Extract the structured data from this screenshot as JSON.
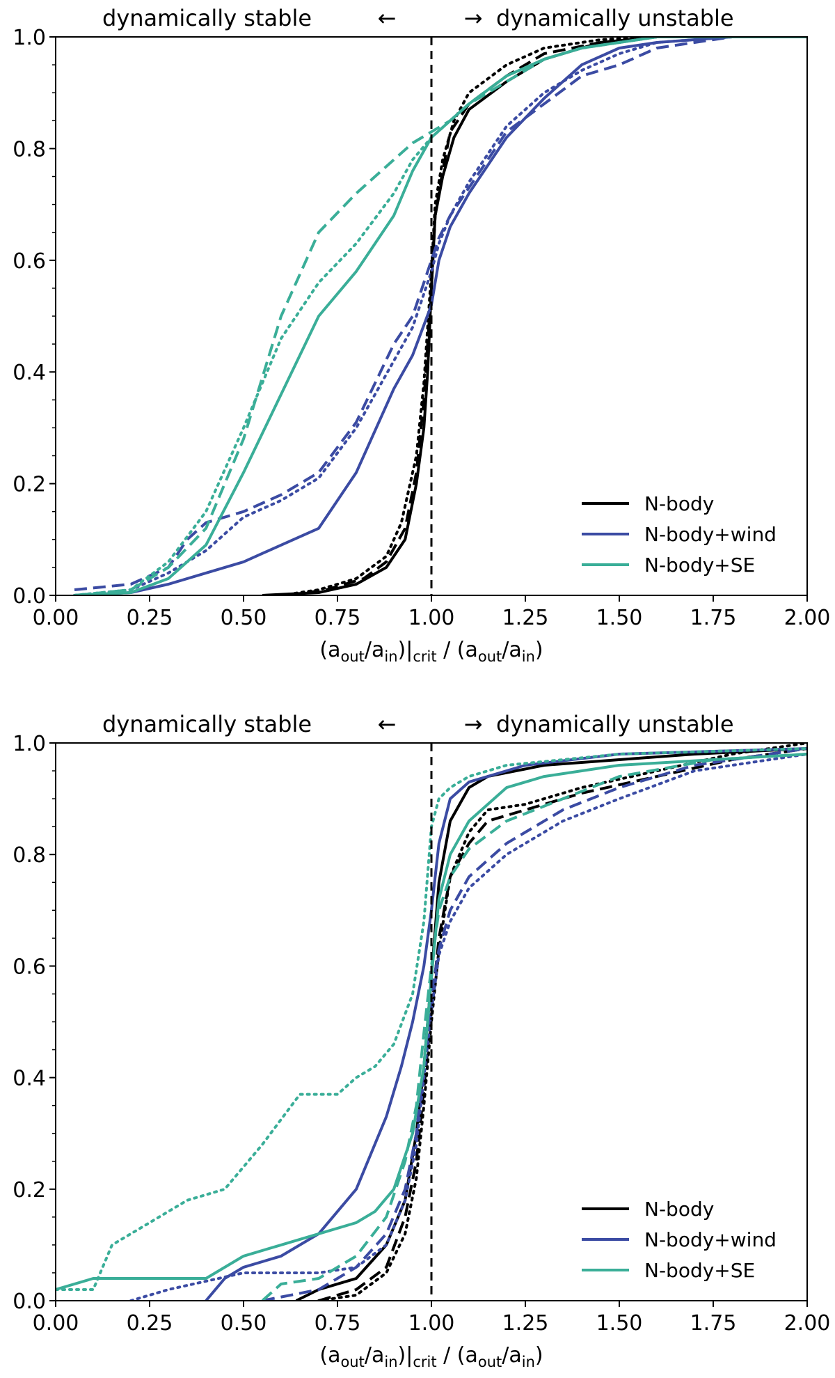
{
  "chart_data": [
    {
      "type": "line",
      "panel": "top",
      "top_left_label": "dynamically stable",
      "left_arrow": "←",
      "right_arrow": "→",
      "top_right_label": "dynamically unstable",
      "xlabel": {
        "a": "(a",
        "out": "out",
        "slash": "/a",
        "in": "in",
        "crit_open": ")|",
        "crit": "crit",
        "mid": " / (a",
        "out2": "out",
        "slash2": "/a",
        "in2": "in",
        "close": ")"
      },
      "xlim": [
        0.0,
        2.0
      ],
      "ylim": [
        0.0,
        1.0
      ],
      "xticks": [
        "0.00",
        "0.25",
        "0.50",
        "0.75",
        "1.00",
        "1.25",
        "1.50",
        "1.75",
        "2.00"
      ],
      "yticks": [
        "0.0",
        "0.2",
        "0.4",
        "0.6",
        "0.8",
        "1.0"
      ],
      "vline_x": 1.0,
      "legend": {
        "location": "lower-right",
        "entries": [
          "N-body",
          "N-body+wind",
          "N-body+SE"
        ]
      },
      "colors": {
        "N-body": "#000000",
        "N-body+wind": "#3b4ba3",
        "N-body+SE": "#3aae98"
      },
      "series": [
        {
          "name": "N-body",
          "style": "solid",
          "x": [
            0.55,
            0.7,
            0.8,
            0.88,
            0.93,
            0.96,
            0.98,
            0.99,
            1.0,
            1.01,
            1.03,
            1.06,
            1.1,
            1.2,
            1.3,
            1.45,
            1.6,
            2.0
          ],
          "y": [
            0.0,
            0.005,
            0.02,
            0.05,
            0.1,
            0.2,
            0.3,
            0.4,
            0.55,
            0.68,
            0.75,
            0.82,
            0.87,
            0.92,
            0.96,
            0.99,
            1.0,
            1.0
          ]
        },
        {
          "name": "N-body",
          "style": "dashed",
          "x": [
            0.62,
            0.72,
            0.82,
            0.88,
            0.93,
            0.96,
            0.98,
            1.0,
            1.01,
            1.03,
            1.05,
            1.1,
            1.2,
            1.3,
            1.45,
            1.6,
            2.0
          ],
          "y": [
            0.0,
            0.01,
            0.03,
            0.06,
            0.12,
            0.22,
            0.35,
            0.55,
            0.68,
            0.76,
            0.83,
            0.88,
            0.93,
            0.97,
            0.99,
            1.0,
            1.0
          ]
        },
        {
          "name": "N-body",
          "style": "dotted",
          "x": [
            0.6,
            0.7,
            0.8,
            0.88,
            0.92,
            0.96,
            0.98,
            1.0,
            1.01,
            1.03,
            1.06,
            1.1,
            1.2,
            1.3,
            1.45,
            1.6,
            2.0
          ],
          "y": [
            0.0,
            0.01,
            0.03,
            0.07,
            0.13,
            0.25,
            0.38,
            0.58,
            0.7,
            0.78,
            0.85,
            0.9,
            0.95,
            0.98,
            0.995,
            1.0,
            1.0
          ]
        },
        {
          "name": "N-body+wind",
          "style": "solid",
          "x": [
            0.05,
            0.2,
            0.3,
            0.4,
            0.5,
            0.6,
            0.7,
            0.8,
            0.9,
            0.95,
            1.0,
            1.02,
            1.05,
            1.1,
            1.2,
            1.3,
            1.4,
            1.5,
            1.6,
            1.8,
            2.0
          ],
          "y": [
            0.0,
            0.005,
            0.02,
            0.04,
            0.06,
            0.09,
            0.12,
            0.22,
            0.37,
            0.43,
            0.52,
            0.6,
            0.66,
            0.72,
            0.82,
            0.89,
            0.95,
            0.98,
            0.99,
            1.0,
            1.0
          ]
        },
        {
          "name": "N-body+wind",
          "style": "dashed",
          "x": [
            0.05,
            0.2,
            0.3,
            0.35,
            0.4,
            0.5,
            0.6,
            0.7,
            0.8,
            0.9,
            0.95,
            1.0,
            1.02,
            1.05,
            1.1,
            1.2,
            1.3,
            1.4,
            1.5,
            1.6,
            1.8,
            2.0
          ],
          "y": [
            0.01,
            0.02,
            0.05,
            0.1,
            0.13,
            0.15,
            0.18,
            0.22,
            0.31,
            0.45,
            0.5,
            0.6,
            0.64,
            0.68,
            0.73,
            0.83,
            0.88,
            0.93,
            0.95,
            0.98,
            1.0,
            1.0
          ]
        },
        {
          "name": "N-body+wind",
          "style": "dotted",
          "x": [
            0.05,
            0.2,
            0.3,
            0.4,
            0.5,
            0.6,
            0.7,
            0.8,
            0.9,
            0.95,
            1.0,
            1.02,
            1.05,
            1.1,
            1.2,
            1.3,
            1.4,
            1.5,
            1.6,
            1.8,
            2.0
          ],
          "y": [
            0.0,
            0.01,
            0.04,
            0.08,
            0.14,
            0.17,
            0.21,
            0.3,
            0.42,
            0.48,
            0.58,
            0.63,
            0.68,
            0.74,
            0.84,
            0.9,
            0.94,
            0.97,
            0.99,
            1.0,
            1.0
          ]
        },
        {
          "name": "N-body+SE",
          "style": "solid",
          "x": [
            0.05,
            0.2,
            0.3,
            0.4,
            0.5,
            0.6,
            0.7,
            0.8,
            0.9,
            0.95,
            1.0,
            1.05,
            1.1,
            1.2,
            1.3,
            1.4,
            1.5,
            1.6,
            1.8,
            2.0
          ],
          "y": [
            0.0,
            0.005,
            0.03,
            0.09,
            0.22,
            0.36,
            0.5,
            0.58,
            0.68,
            0.76,
            0.82,
            0.85,
            0.88,
            0.93,
            0.96,
            0.98,
            0.99,
            1.0,
            1.0,
            1.0
          ]
        },
        {
          "name": "N-body+SE",
          "style": "dashed",
          "x": [
            0.05,
            0.2,
            0.3,
            0.4,
            0.5,
            0.6,
            0.7,
            0.8,
            0.9,
            0.95,
            1.0,
            1.05,
            1.1,
            1.2,
            1.3,
            1.4,
            1.5,
            1.6,
            1.8,
            2.0
          ],
          "y": [
            0.0,
            0.01,
            0.05,
            0.12,
            0.28,
            0.5,
            0.65,
            0.72,
            0.78,
            0.81,
            0.83,
            0.85,
            0.88,
            0.92,
            0.96,
            0.98,
            0.99,
            1.0,
            1.0,
            1.0
          ]
        },
        {
          "name": "N-body+SE",
          "style": "dotted",
          "x": [
            0.05,
            0.2,
            0.3,
            0.4,
            0.5,
            0.6,
            0.7,
            0.8,
            0.9,
            0.95,
            1.0,
            1.05,
            1.1,
            1.2,
            1.3,
            1.4,
            1.5,
            1.6,
            1.8,
            2.0
          ],
          "y": [
            0.0,
            0.01,
            0.06,
            0.15,
            0.3,
            0.46,
            0.56,
            0.63,
            0.72,
            0.78,
            0.82,
            0.85,
            0.88,
            0.93,
            0.96,
            0.98,
            0.99,
            1.0,
            1.0,
            1.0
          ]
        }
      ]
    },
    {
      "type": "line",
      "panel": "bottom",
      "top_left_label": "dynamically stable",
      "left_arrow": "←",
      "right_arrow": "→",
      "top_right_label": "dynamically unstable",
      "xlabel": {
        "a": "(a",
        "out": "out",
        "slash": "/a",
        "in": "in",
        "crit_open": ")|",
        "crit": "crit",
        "mid": " / (a",
        "out2": "out",
        "slash2": "/a",
        "in2": "in",
        "close": ")"
      },
      "xlim": [
        0.0,
        2.0
      ],
      "ylim": [
        0.0,
        1.0
      ],
      "xticks": [
        "0.00",
        "0.25",
        "0.50",
        "0.75",
        "1.00",
        "1.25",
        "1.50",
        "1.75",
        "2.00"
      ],
      "yticks": [
        "0.0",
        "0.2",
        "0.4",
        "0.6",
        "0.8",
        "1.0"
      ],
      "vline_x": 1.0,
      "legend": {
        "location": "lower-right",
        "entries": [
          "N-body",
          "N-body+wind",
          "N-body+SE"
        ]
      },
      "colors": {
        "N-body": "#000000",
        "N-body+wind": "#3b4ba3",
        "N-body+SE": "#3aae98"
      },
      "series": [
        {
          "name": "N-body",
          "style": "solid",
          "x": [
            0.64,
            0.7,
            0.8,
            0.88,
            0.93,
            0.96,
            0.98,
            1.0,
            1.02,
            1.05,
            1.1,
            1.15,
            1.3,
            1.5,
            1.7,
            2.0
          ],
          "y": [
            0.0,
            0.02,
            0.04,
            0.1,
            0.18,
            0.3,
            0.42,
            0.58,
            0.75,
            0.86,
            0.92,
            0.94,
            0.96,
            0.97,
            0.98,
            0.99
          ]
        },
        {
          "name": "N-body",
          "style": "dashed",
          "x": [
            0.7,
            0.8,
            0.88,
            0.93,
            0.96,
            0.98,
            1.0,
            1.02,
            1.05,
            1.1,
            1.15,
            1.25,
            1.4,
            1.6,
            1.8,
            2.0
          ],
          "y": [
            0.0,
            0.02,
            0.06,
            0.15,
            0.25,
            0.38,
            0.52,
            0.65,
            0.76,
            0.82,
            0.86,
            0.88,
            0.91,
            0.94,
            0.97,
            0.99
          ]
        },
        {
          "name": "N-body",
          "style": "dotted",
          "x": [
            0.7,
            0.8,
            0.88,
            0.93,
            0.96,
            0.98,
            1.0,
            1.02,
            1.05,
            1.1,
            1.15,
            1.25,
            1.4,
            1.6,
            1.8,
            2.0
          ],
          "y": [
            0.0,
            0.01,
            0.05,
            0.12,
            0.22,
            0.35,
            0.5,
            0.63,
            0.76,
            0.84,
            0.88,
            0.89,
            0.92,
            0.95,
            0.98,
            1.0
          ]
        },
        {
          "name": "N-body+wind",
          "style": "solid",
          "x": [
            0.4,
            0.45,
            0.5,
            0.6,
            0.7,
            0.8,
            0.88,
            0.92,
            0.95,
            0.98,
            1.0,
            1.02,
            1.05,
            1.1,
            1.15,
            1.25,
            1.5,
            1.75,
            2.0
          ],
          "y": [
            0.0,
            0.04,
            0.06,
            0.08,
            0.12,
            0.2,
            0.33,
            0.42,
            0.5,
            0.6,
            0.7,
            0.82,
            0.9,
            0.93,
            0.94,
            0.96,
            0.98,
            0.985,
            0.99
          ]
        },
        {
          "name": "N-body+wind",
          "style": "dashed",
          "x": [
            0.55,
            0.7,
            0.8,
            0.88,
            0.93,
            0.96,
            0.98,
            1.0,
            1.02,
            1.05,
            1.1,
            1.2,
            1.35,
            1.5,
            1.7,
            2.0
          ],
          "y": [
            0.0,
            0.02,
            0.06,
            0.12,
            0.2,
            0.3,
            0.42,
            0.55,
            0.63,
            0.7,
            0.76,
            0.82,
            0.88,
            0.92,
            0.96,
            0.99
          ]
        },
        {
          "name": "N-body+wind",
          "style": "dotted",
          "x": [
            0.2,
            0.3,
            0.5,
            0.7,
            0.8,
            0.88,
            0.93,
            0.96,
            0.98,
            1.0,
            1.02,
            1.05,
            1.1,
            1.2,
            1.35,
            1.5,
            1.7,
            2.0
          ],
          "y": [
            0.0,
            0.02,
            0.05,
            0.05,
            0.06,
            0.1,
            0.18,
            0.28,
            0.4,
            0.52,
            0.62,
            0.68,
            0.74,
            0.8,
            0.86,
            0.9,
            0.95,
            0.98
          ]
        },
        {
          "name": "N-body+SE",
          "style": "solid",
          "x": [
            0.0,
            0.1,
            0.2,
            0.4,
            0.5,
            0.6,
            0.7,
            0.8,
            0.85,
            0.9,
            0.95,
            0.98,
            1.0,
            1.02,
            1.05,
            1.1,
            1.2,
            1.3,
            1.5,
            1.75,
            2.0
          ],
          "y": [
            0.02,
            0.04,
            0.04,
            0.04,
            0.08,
            0.1,
            0.12,
            0.14,
            0.16,
            0.2,
            0.3,
            0.42,
            0.58,
            0.72,
            0.8,
            0.86,
            0.92,
            0.94,
            0.96,
            0.97,
            0.98
          ]
        },
        {
          "name": "N-body+SE",
          "style": "dashed",
          "x": [
            0.55,
            0.6,
            0.7,
            0.8,
            0.88,
            0.93,
            0.96,
            0.98,
            1.0,
            1.02,
            1.05,
            1.1,
            1.2,
            1.35,
            1.5,
            1.75,
            2.0
          ],
          "y": [
            0.0,
            0.03,
            0.04,
            0.08,
            0.15,
            0.25,
            0.35,
            0.48,
            0.6,
            0.7,
            0.76,
            0.81,
            0.86,
            0.9,
            0.94,
            0.97,
            0.98
          ]
        },
        {
          "name": "N-body+SE",
          "style": "dotted",
          "x": [
            0.0,
            0.1,
            0.15,
            0.25,
            0.35,
            0.45,
            0.55,
            0.65,
            0.7,
            0.75,
            0.8,
            0.85,
            0.9,
            0.95,
            0.98,
            1.0,
            1.02,
            1.05,
            1.1,
            1.2,
            1.35,
            1.5,
            2.0
          ],
          "y": [
            0.02,
            0.02,
            0.1,
            0.14,
            0.18,
            0.2,
            0.28,
            0.37,
            0.37,
            0.37,
            0.4,
            0.42,
            0.46,
            0.55,
            0.68,
            0.85,
            0.9,
            0.92,
            0.94,
            0.96,
            0.97,
            0.98,
            0.99
          ]
        }
      ]
    }
  ]
}
